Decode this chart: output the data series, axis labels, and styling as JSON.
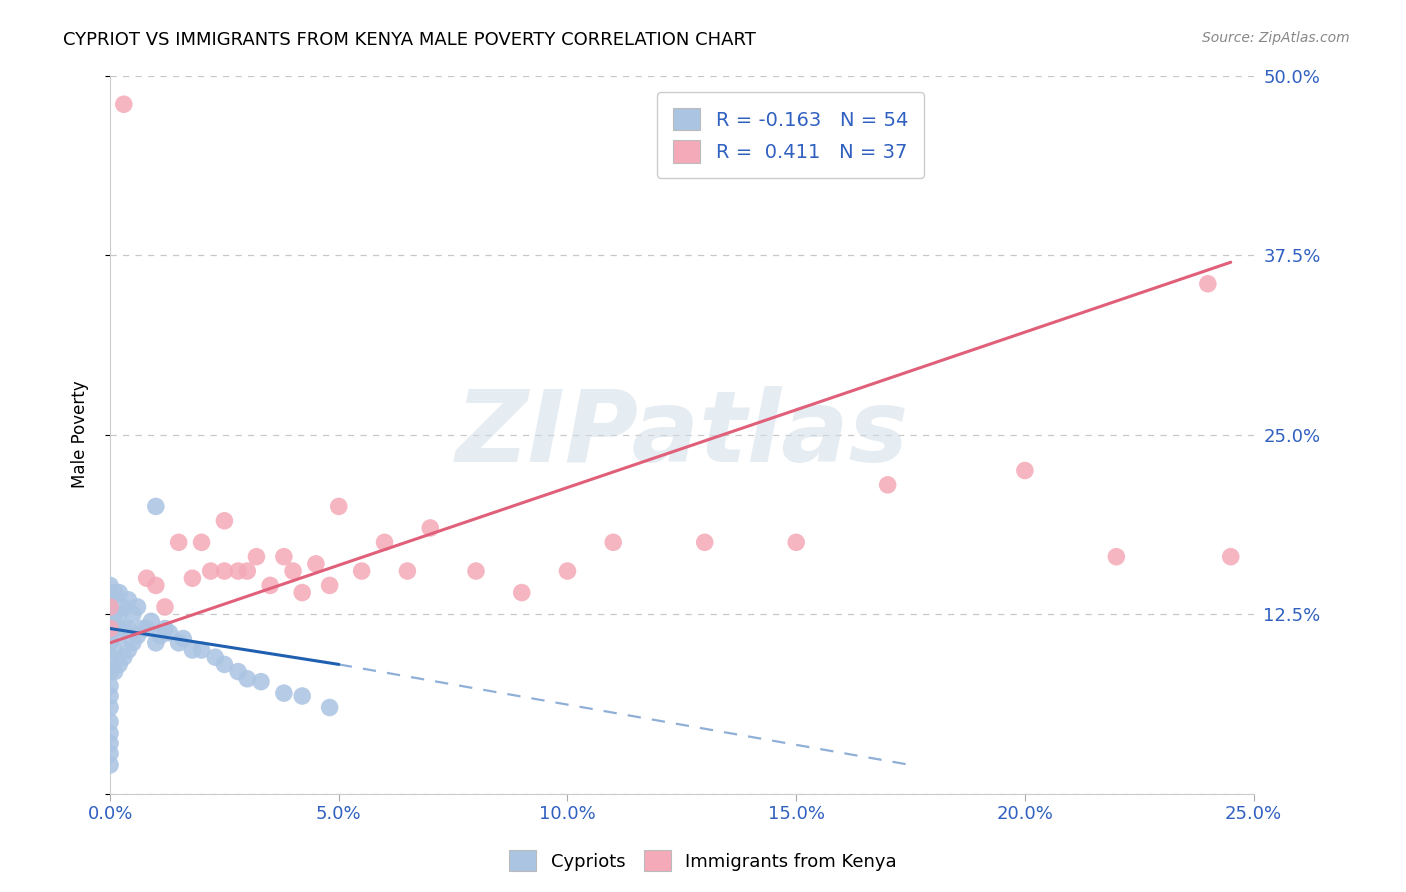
{
  "title": "CYPRIOT VS IMMIGRANTS FROM KENYA MALE POVERTY CORRELATION CHART",
  "source": "Source: ZipAtlas.com",
  "ylabel": "Male Poverty",
  "x_ticks": [
    0.0,
    0.05,
    0.1,
    0.15,
    0.2,
    0.25
  ],
  "y_ticks": [
    0.0,
    0.125,
    0.25,
    0.375,
    0.5
  ],
  "x_tick_labels": [
    "0.0%",
    "5.0%",
    "10.0%",
    "15.0%",
    "20.0%",
    "25.0%"
  ],
  "y_tick_labels": [
    "",
    "12.5%",
    "25.0%",
    "37.5%",
    "50.0%"
  ],
  "x_min": 0.0,
  "x_max": 0.25,
  "y_min": 0.0,
  "y_max": 0.5,
  "legend_labels": [
    "Cypriots",
    "Immigrants from Kenya"
  ],
  "legend_R": [
    -0.163,
    0.411
  ],
  "legend_N": [
    54,
    37
  ],
  "cypriot_color": "#aac4e2",
  "kenya_color": "#f4aab8",
  "cypriot_line_color": "#2060b0",
  "kenya_line_color": "#e0607a",
  "watermark": "ZIPatlas",
  "background_color": "#ffffff",
  "grid_color": "#c8c8c8",
  "tick_label_color": "#3060c0",
  "cypriot_x": [
    0.0,
    0.0,
    0.0,
    0.0,
    0.0,
    0.0,
    0.0,
    0.0,
    0.0,
    0.0,
    0.0,
    0.0,
    0.0,
    0.0,
    0.0,
    0.001,
    0.001,
    0.001,
    0.001,
    0.001,
    0.002,
    0.002,
    0.002,
    0.002,
    0.003,
    0.003,
    0.003,
    0.004,
    0.004,
    0.004,
    0.005,
    0.005,
    0.006,
    0.006,
    0.007,
    0.008,
    0.009,
    0.01,
    0.01,
    0.011,
    0.012,
    0.013,
    0.015,
    0.016,
    0.018,
    0.02,
    0.023,
    0.025,
    0.028,
    0.03,
    0.033,
    0.038,
    0.042,
    0.048
  ],
  "cypriot_y": [
    0.02,
    0.028,
    0.035,
    0.042,
    0.05,
    0.06,
    0.068,
    0.075,
    0.085,
    0.095,
    0.105,
    0.115,
    0.125,
    0.135,
    0.145,
    0.085,
    0.1,
    0.115,
    0.125,
    0.14,
    0.09,
    0.11,
    0.125,
    0.14,
    0.095,
    0.115,
    0.13,
    0.1,
    0.115,
    0.135,
    0.105,
    0.125,
    0.11,
    0.13,
    0.115,
    0.115,
    0.12,
    0.2,
    0.105,
    0.11,
    0.115,
    0.112,
    0.105,
    0.108,
    0.1,
    0.1,
    0.095,
    0.09,
    0.085,
    0.08,
    0.078,
    0.07,
    0.068,
    0.06
  ],
  "kenya_x": [
    0.0,
    0.0,
    0.003,
    0.008,
    0.01,
    0.012,
    0.015,
    0.018,
    0.02,
    0.022,
    0.025,
    0.025,
    0.028,
    0.03,
    0.032,
    0.035,
    0.038,
    0.04,
    0.042,
    0.045,
    0.048,
    0.05,
    0.055,
    0.06,
    0.065,
    0.07,
    0.08,
    0.09,
    0.1,
    0.11,
    0.13,
    0.15,
    0.17,
    0.2,
    0.22,
    0.24,
    0.245
  ],
  "kenya_y": [
    0.13,
    0.115,
    0.48,
    0.15,
    0.145,
    0.13,
    0.175,
    0.15,
    0.175,
    0.155,
    0.19,
    0.155,
    0.155,
    0.155,
    0.165,
    0.145,
    0.165,
    0.155,
    0.14,
    0.16,
    0.145,
    0.2,
    0.155,
    0.175,
    0.155,
    0.185,
    0.155,
    0.14,
    0.155,
    0.175,
    0.175,
    0.175,
    0.215,
    0.225,
    0.165,
    0.355,
    0.165
  ],
  "cy_line_x0": 0.0,
  "cy_line_x1": 0.05,
  "cy_line_x2": 0.175,
  "cy_line_y0": 0.115,
  "cy_line_y1": 0.09,
  "cy_line_y2": 0.02,
  "ke_line_x0": 0.0,
  "ke_line_x1": 0.245,
  "ke_line_y0": 0.105,
  "ke_line_y1": 0.37
}
